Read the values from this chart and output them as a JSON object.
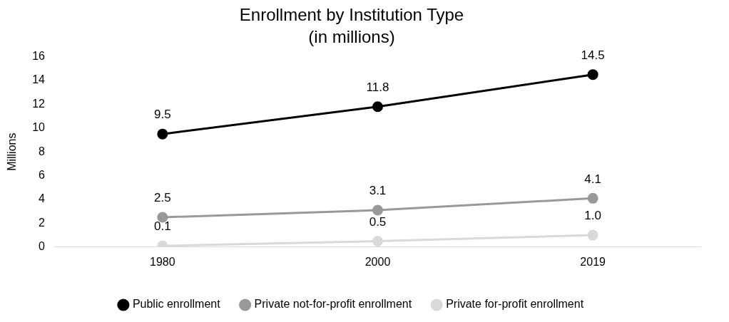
{
  "chart_data": {
    "type": "line",
    "title": "Enrollment by Institution Type",
    "subtitle": "(in millions)",
    "ylabel": "Millions",
    "categories": [
      "1980",
      "2000",
      "2019"
    ],
    "series": [
      {
        "name": "Public enrollment",
        "color": "#000000",
        "values": [
          9.5,
          11.8,
          14.5
        ],
        "value_labels": [
          "9.5",
          "11.8",
          "14.5"
        ]
      },
      {
        "name": "Private not-for-profit enrollment",
        "color": "#999999",
        "values": [
          2.5,
          3.1,
          4.1
        ],
        "value_labels": [
          "2.5",
          "3.1",
          "4.1"
        ]
      },
      {
        "name": "Private for-profit enrollment",
        "color": "#d9d9d9",
        "values": [
          0.1,
          0.5,
          1.0
        ],
        "value_labels": [
          "0.1",
          "0.5",
          "1.0"
        ]
      }
    ],
    "ylim": [
      0,
      16
    ],
    "yticks": [
      0,
      2,
      4,
      6,
      8,
      10,
      12,
      14,
      16
    ],
    "grid": false,
    "legend": "bottom",
    "marker": "circle",
    "line_style": "solid"
  }
}
